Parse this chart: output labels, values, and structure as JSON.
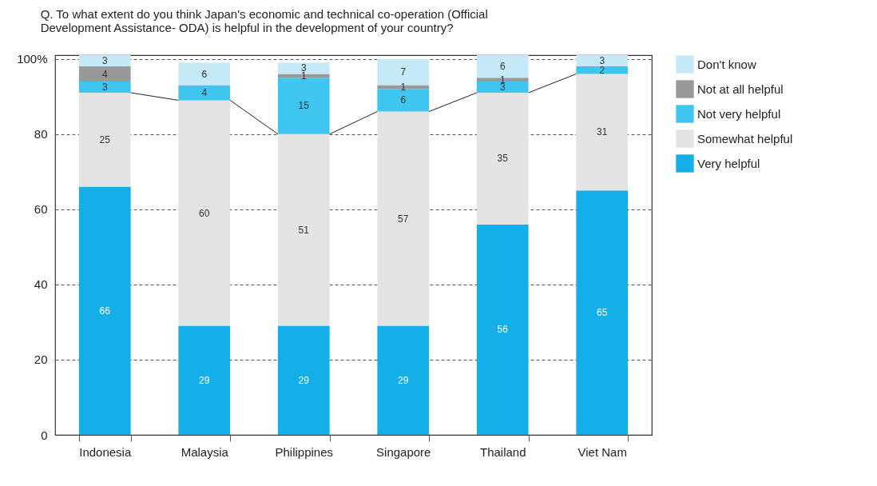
{
  "chart_data": {
    "type": "bar",
    "stacked": true,
    "title": "Q. To what extent do you think Japan's economic and technical co-operation (Official Development Assistance- ODA) is helpful in the development of your country?",
    "categories": [
      "Indonesia",
      "Malaysia",
      "Philippines",
      "Singapore",
      "Thailand",
      "Viet Nam"
    ],
    "series": [
      {
        "name": "Very helpful",
        "color": "#14aee8",
        "values": [
          66,
          29,
          29,
          29,
          56,
          65
        ]
      },
      {
        "name": "Somewhat helpful",
        "color": "#e4e4e4",
        "values": [
          25,
          60,
          51,
          57,
          35,
          31
        ]
      },
      {
        "name": "Not very helpful",
        "color": "#3fc6f0",
        "values": [
          3,
          4,
          15,
          6,
          3,
          2
        ]
      },
      {
        "name": "Not at all helpful",
        "color": "#999999",
        "values": [
          4,
          null,
          1,
          1,
          1,
          null
        ]
      },
      {
        "name": "Don't know",
        "color": "#c6e9f8",
        "values": [
          3,
          6,
          3,
          7,
          6,
          3
        ]
      }
    ],
    "ylim": [
      0,
      101
    ],
    "yticks": [
      0,
      20,
      40,
      60,
      80,
      {
        "value": 100,
        "label": "100%"
      }
    ],
    "grid": "y",
    "legend": "right",
    "data_labels": true
  }
}
